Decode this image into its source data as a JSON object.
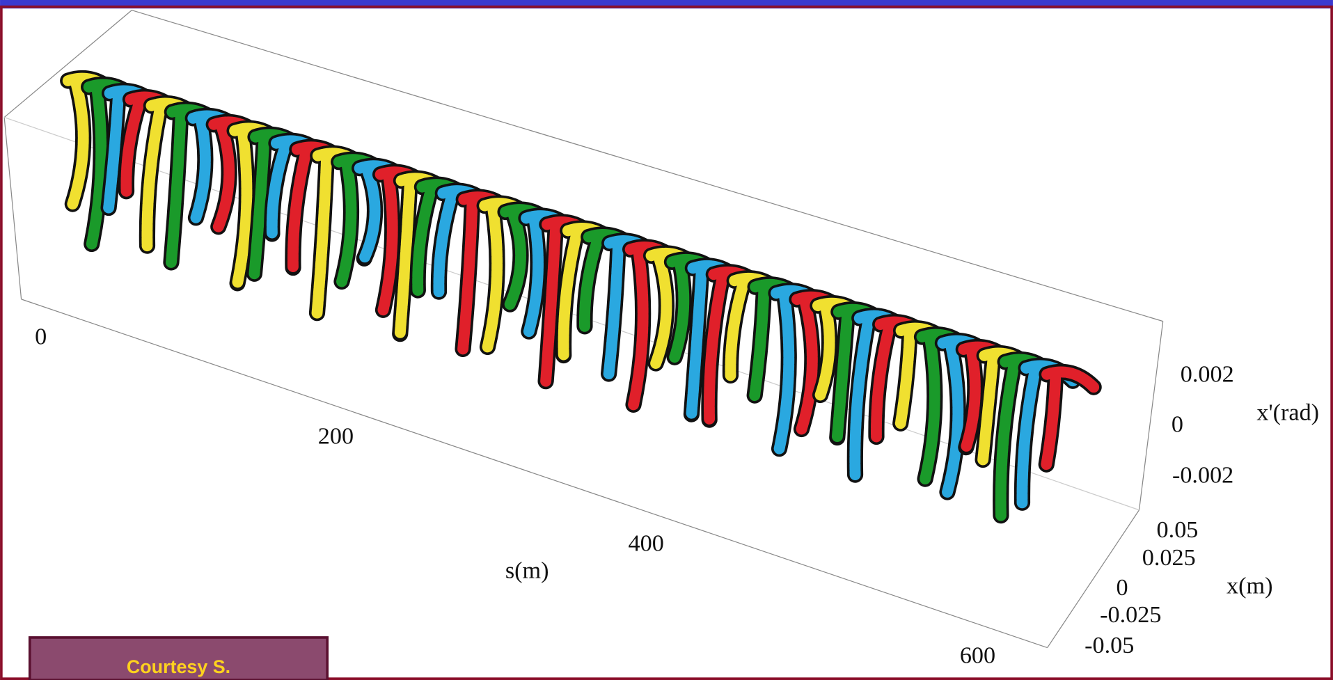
{
  "plot": {
    "s_axis": {
      "label": "s(m)",
      "ticks": [
        "0",
        "200",
        "400",
        "600"
      ]
    },
    "xp_axis": {
      "label": "x'(rad)",
      "ticks": [
        "0.002",
        "0",
        "-0.002"
      ]
    },
    "x_axis": {
      "label": "x(m)",
      "ticks": [
        "0.05",
        "0.025",
        "0",
        "-0.025",
        "-0.05"
      ]
    }
  },
  "courtesy": "Courtesy S."
}
